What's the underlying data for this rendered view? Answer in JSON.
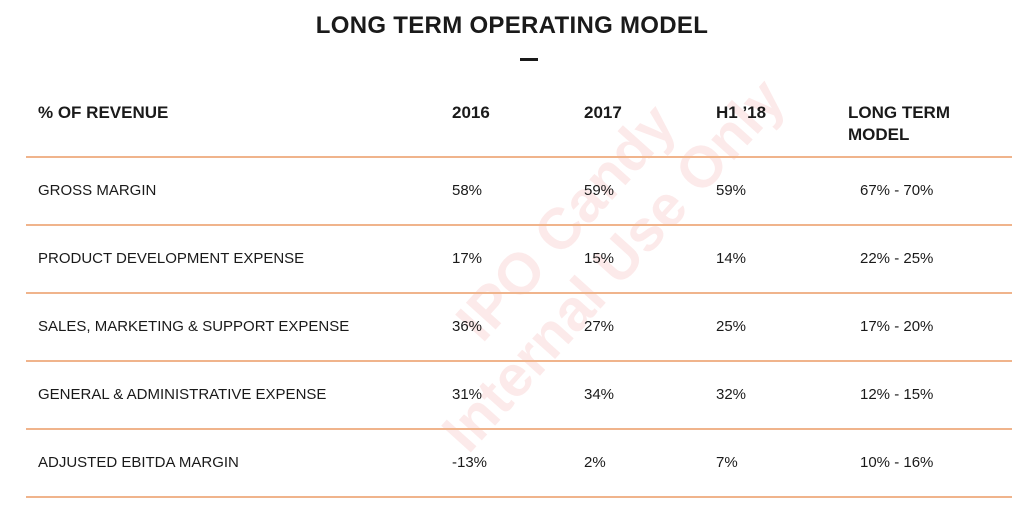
{
  "title": "LONG TERM OPERATING MODEL",
  "watermark": [
    "IPO Candy",
    "Internal Use Only"
  ],
  "table": {
    "headers": [
      "% OF REVENUE",
      "2016",
      "2017",
      "H1 ’18",
      [
        "LONG TERM",
        "MODEL"
      ]
    ],
    "rows": [
      [
        "GROSS MARGIN",
        "58%",
        "59%",
        "59%",
        "67% - 70%"
      ],
      [
        "PRODUCT DEVELOPMENT EXPENSE",
        "17%",
        "15%",
        "14%",
        "22% - 25%"
      ],
      [
        "SALES, MARKETING & SUPPORT EXPENSE",
        "36%",
        "27%",
        "25%",
        "17% - 20%"
      ],
      [
        "GENERAL & ADMINISTRATIVE EXPENSE",
        "31%",
        "34%",
        "32%",
        "12% - 15%"
      ],
      [
        "ADJUSTED EBITDA MARGIN",
        "-13%",
        "2%",
        "7%",
        "10% - 16%"
      ]
    ]
  },
  "colors": {
    "divider": "#f0b48c",
    "watermark": "#eb5a5a"
  }
}
